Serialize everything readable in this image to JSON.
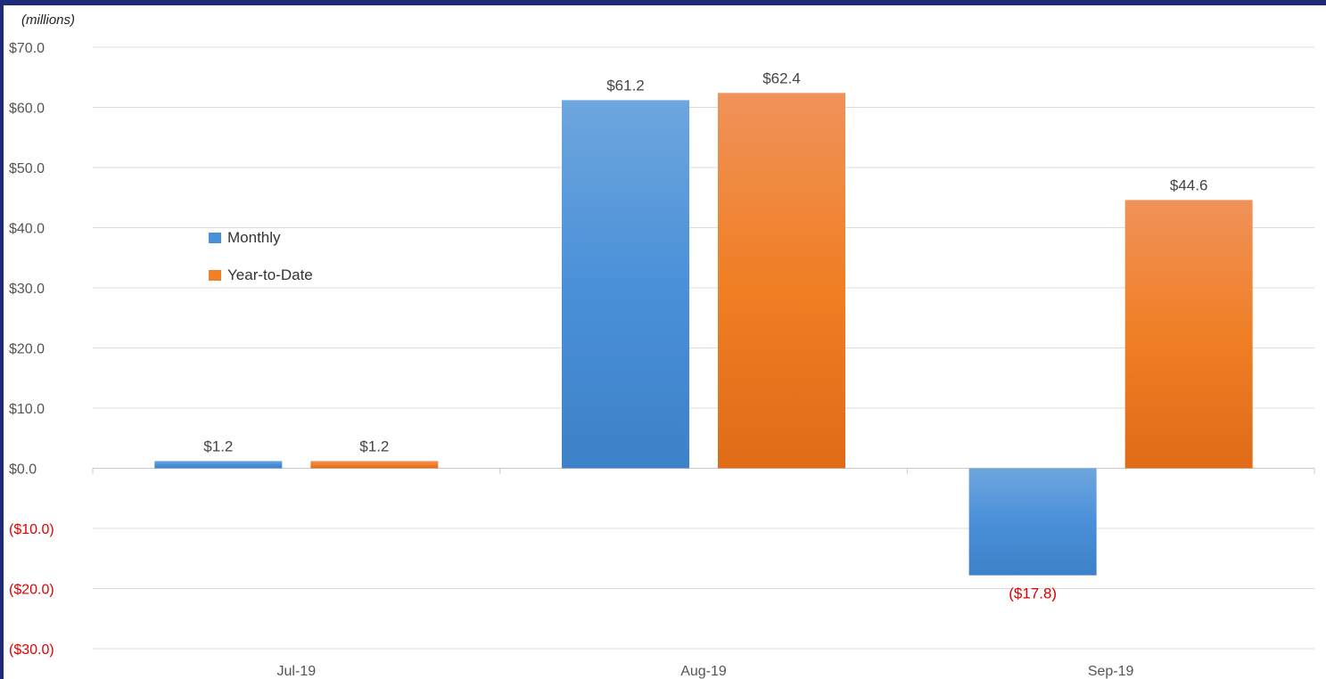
{
  "chart_data": {
    "type": "bar",
    "unit_label": "(millions)",
    "categories": [
      "Jul-19",
      "Aug-19",
      "Sep-19"
    ],
    "series": [
      {
        "name": "Monthly",
        "values": [
          1.2,
          61.2,
          -17.8
        ],
        "labels": [
          "$1.2",
          "$61.2",
          "($17.8)"
        ],
        "color": "#4a90d9"
      },
      {
        "name": "Year-to-Date",
        "values": [
          1.2,
          62.4,
          44.6
        ],
        "labels": [
          "$1.2",
          "$62.4",
          "$44.6"
        ],
        "color": "#f07f25"
      }
    ],
    "ylim": [
      -30,
      70
    ],
    "yticks": [
      70,
      60,
      50,
      40,
      30,
      20,
      10,
      0,
      -10,
      -20,
      -30
    ],
    "ytick_labels": [
      "$70.0",
      "$60.0",
      "$50.0",
      "$40.0",
      "$30.0",
      "$20.0",
      "$10.0",
      "$0.0",
      "($10.0)",
      "($20.0)",
      "($30.0)"
    ],
    "negative_color": "#e00000",
    "grid": true,
    "legend_position": "left"
  }
}
